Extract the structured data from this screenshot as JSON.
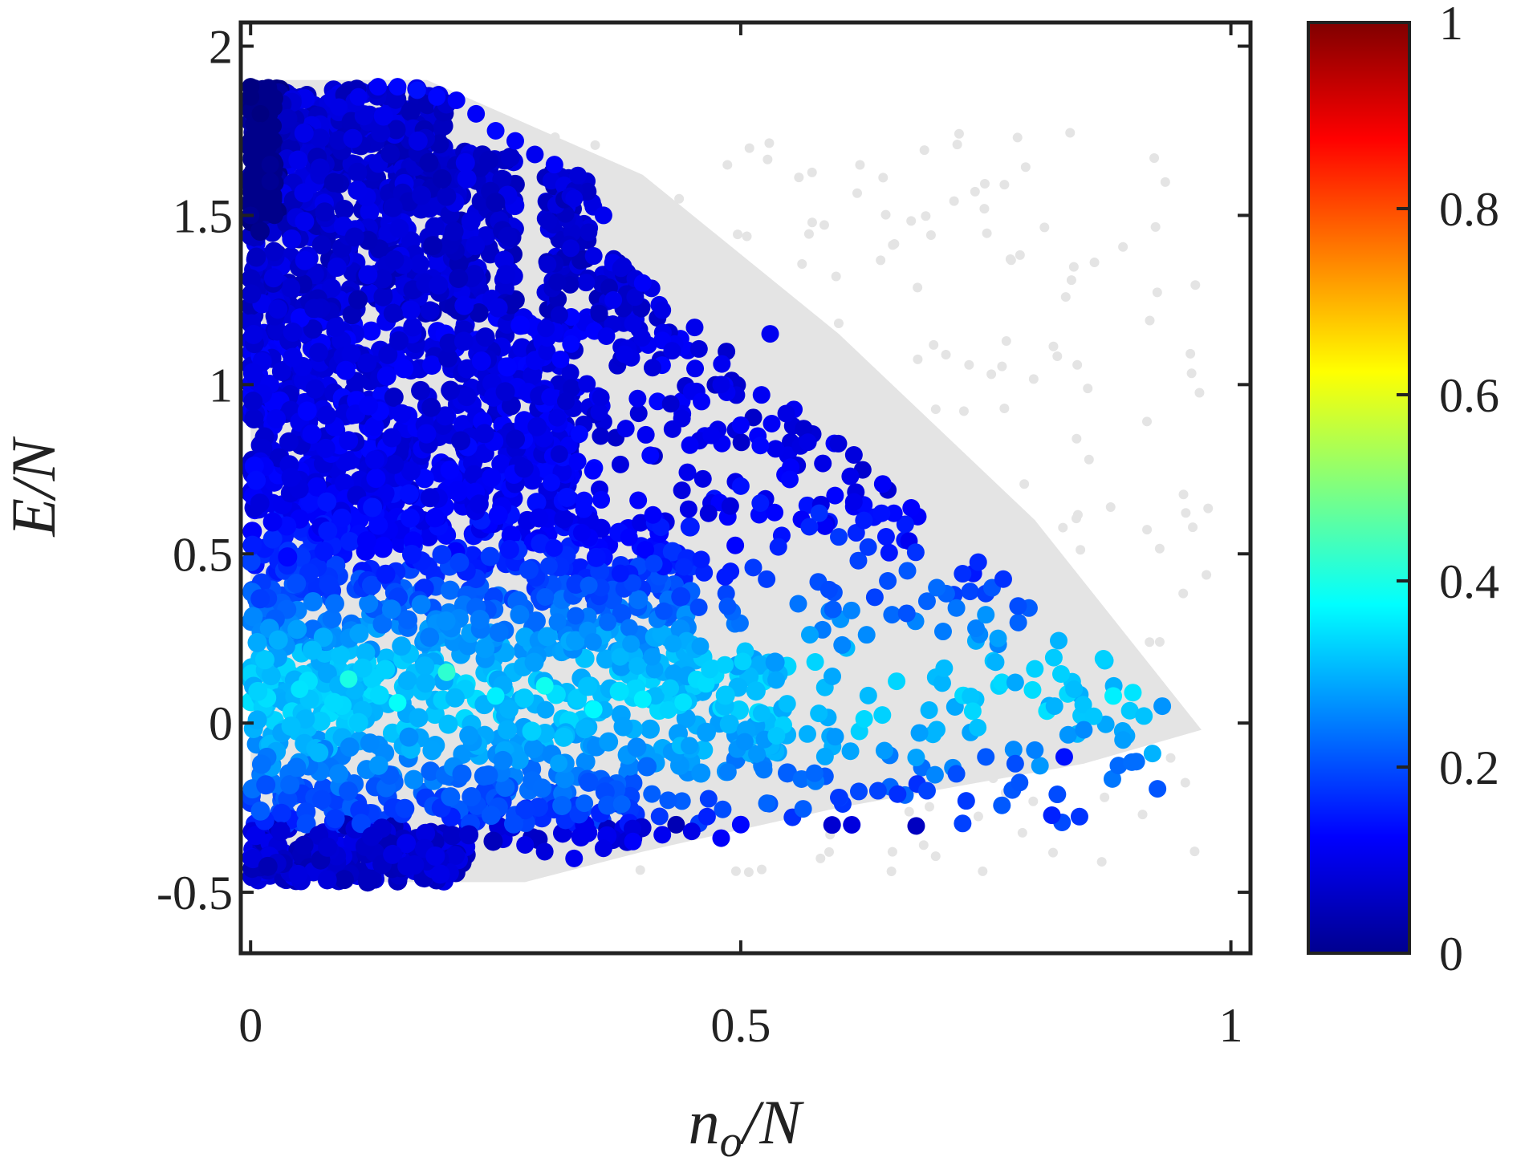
{
  "chart_data": {
    "type": "scatter",
    "xlabel": "n_o/N",
    "ylabel": "E/N",
    "xlabel_parts": {
      "base": "n",
      "sub": "o",
      "rest": "/N"
    },
    "xlim": [
      -0.01,
      1.02
    ],
    "ylim": [
      -0.68,
      2.07
    ],
    "x_ticks": [
      0,
      0.5,
      1
    ],
    "x_tick_labels": [
      "0",
      "0.5",
      "1"
    ],
    "y_ticks": [
      -0.5,
      0,
      0.5,
      1,
      1.5,
      2
    ],
    "y_tick_labels": [
      "-0.5",
      "0",
      "0.5",
      "1",
      "1.5",
      "2"
    ],
    "colorbar": {
      "range": [
        0,
        1
      ],
      "ticks": [
        0,
        0.2,
        0.4,
        0.6,
        0.8,
        1
      ],
      "tick_labels": [
        "0",
        "0.2",
        "0.4",
        "0.6",
        "0.8",
        "1"
      ],
      "colormap": "jet"
    },
    "background_region": {
      "color": "#e4e4e4",
      "description_points": [
        [
          0.0,
          1.9
        ],
        [
          0.18,
          1.9
        ],
        [
          0.4,
          1.62
        ],
        [
          0.6,
          1.15
        ],
        [
          0.8,
          0.6
        ],
        [
          0.97,
          -0.02
        ],
        [
          0.85,
          -0.12
        ],
        [
          0.6,
          -0.25
        ],
        [
          0.4,
          -0.38
        ],
        [
          0.28,
          -0.47
        ],
        [
          0.0,
          -0.47
        ]
      ]
    },
    "series": [
      {
        "x": [
          0.0,
          0.01,
          0.0,
          0.02,
          0.0,
          0.01,
          0.0,
          0.02
        ],
        "y": [
          1.88,
          1.8,
          1.7,
          1.6,
          1.5,
          1.75,
          1.85,
          1.65
        ],
        "c": [
          0.0,
          0.0,
          0.01,
          0.02,
          0.02,
          0.01,
          0.0,
          0.02
        ]
      },
      {
        "x": [
          0.13,
          0.15,
          0.17,
          0.19,
          0.21,
          0.11,
          0.09,
          0.23,
          0.25,
          0.27,
          0.29,
          0.31
        ],
        "y": [
          1.88,
          1.88,
          1.87,
          1.85,
          1.84,
          1.85,
          1.82,
          1.8,
          1.75,
          1.72,
          1.68,
          1.65
        ],
        "c": [
          0.12,
          0.13,
          0.14,
          0.13,
          0.12,
          0.11,
          0.1,
          0.12,
          0.13,
          0.12,
          0.11,
          0.12
        ]
      },
      {
        "x": [
          0.33,
          0.36,
          0.35,
          0.38,
          0.37,
          0.39,
          0.4,
          0.42,
          0.41,
          0.43,
          0.45,
          0.44,
          0.46,
          0.47,
          0.48,
          0.5,
          0.52,
          0.53
        ],
        "y": [
          1.55,
          1.5,
          1.38,
          1.35,
          1.25,
          1.18,
          1.3,
          1.22,
          1.05,
          1.1,
          0.98,
          0.9,
          0.95,
          0.85,
          1.0,
          0.88,
          0.82,
          1.15
        ],
        "c": [
          0.1,
          0.11,
          0.1,
          0.09,
          0.11,
          0.1,
          0.12,
          0.1,
          0.09,
          0.1,
          0.11,
          0.1,
          0.12,
          0.11,
          0.1,
          0.12,
          0.13,
          0.11
        ]
      },
      {
        "x": [
          0.5,
          0.52,
          0.55,
          0.57,
          0.58,
          0.6,
          0.62,
          0.63,
          0.65,
          0.67,
          0.69,
          0.7,
          0.72,
          0.74,
          0.75
        ],
        "y": [
          0.7,
          0.65,
          0.72,
          0.58,
          0.62,
          0.55,
          0.48,
          0.52,
          0.42,
          0.45,
          0.36,
          0.4,
          0.34,
          0.28,
          0.32
        ],
        "c": [
          0.14,
          0.15,
          0.13,
          0.16,
          0.17,
          0.18,
          0.19,
          0.18,
          0.2,
          0.21,
          0.22,
          0.23,
          0.24,
          0.25,
          0.27
        ]
      },
      {
        "x": [
          0.76,
          0.78,
          0.8,
          0.82,
          0.84,
          0.86,
          0.88,
          0.9,
          0.92,
          0.87,
          0.89,
          0.93,
          0.85,
          0.8
        ],
        "y": [
          0.18,
          0.12,
          0.16,
          0.05,
          0.1,
          0.02,
          0.08,
          0.09,
          -0.09,
          0.19,
          -0.05,
          0.05,
          -0.02,
          -0.08
        ],
        "c": [
          0.3,
          0.29,
          0.33,
          0.3,
          0.31,
          0.32,
          0.36,
          0.35,
          0.3,
          0.33,
          0.28,
          0.27,
          0.26,
          0.25
        ]
      },
      {
        "x": [
          0.6,
          0.64,
          0.68,
          0.72,
          0.75,
          0.78,
          0.83,
          0.73,
          0.69,
          0.66
        ],
        "y": [
          -0.22,
          -0.2,
          -0.18,
          -0.15,
          -0.1,
          -0.12,
          -0.1,
          -0.23,
          -0.2,
          -0.21
        ],
        "c": [
          0.18,
          0.19,
          0.17,
          0.2,
          0.21,
          0.2,
          0.14,
          0.18,
          0.19,
          0.17
        ]
      },
      {
        "x": [
          0.28,
          0.3,
          0.33,
          0.36,
          0.39,
          0.42,
          0.45,
          0.48,
          0.5
        ],
        "y": [
          -0.36,
          -0.38,
          -0.4,
          -0.37,
          -0.35,
          -0.33,
          -0.32,
          -0.34,
          -0.3
        ],
        "c": [
          0.1,
          0.09,
          0.11,
          0.1,
          0.12,
          0.11,
          0.1,
          0.12,
          0.13
        ]
      },
      {
        "x": [
          0.05,
          0.1,
          0.15,
          0.2,
          0.25,
          0.3,
          0.35,
          0.4
        ],
        "y": [
          0.1,
          0.13,
          0.06,
          0.15,
          0.08,
          0.11,
          0.04,
          0.07
        ],
        "c": [
          0.35,
          0.4,
          0.38,
          0.42,
          0.36,
          0.39,
          0.37,
          0.36
        ]
      }
    ]
  }
}
